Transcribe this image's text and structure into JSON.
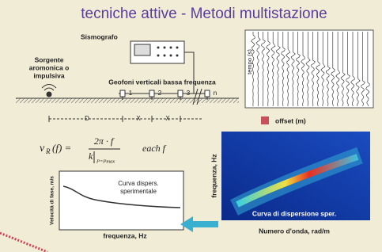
{
  "title": "tecniche attive - Metodi multistazione",
  "layout_diagram": {
    "seismograph": "Sismografo",
    "source": [
      "Sorgente",
      "aromonica o",
      "impulsiva"
    ],
    "geophones_label": "Geofoni verticali bassa frequenza",
    "geophones": [
      "1",
      "2",
      "3",
      "n"
    ],
    "distances": [
      "D",
      "X",
      "X"
    ]
  },
  "seismogram": {
    "y_label": "tempo (s)",
    "legend": "offset (m)"
  },
  "formula": {
    "lhs": "v",
    "lhs_sub": "R",
    "lhs_arg": "(f) =",
    "numerator": "2π · f",
    "denominator": "k",
    "evaluation": "P=Pmax",
    "suffix": "each  f"
  },
  "dispersion_curve": {
    "y_label": "Velocità di fase, m/s",
    "label": [
      "Curva dispers.",
      "sperimentale"
    ],
    "x_label": "frequenza, Hz"
  },
  "spectrum": {
    "y_label": "frequenza, Hz",
    "label": "Curva di dispersione sper.",
    "x_label": "Numero d'onda, rad/m"
  }
}
